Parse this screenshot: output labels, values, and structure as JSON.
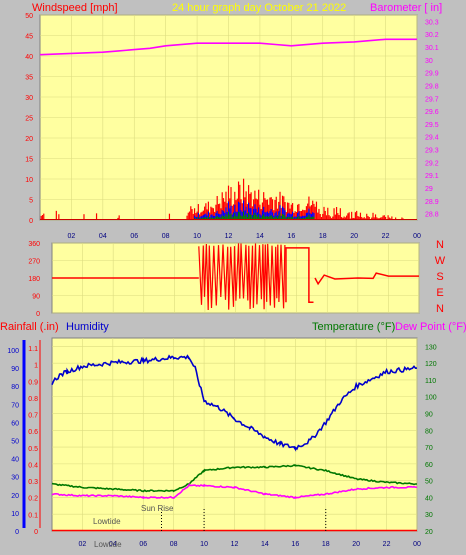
{
  "header": {
    "left_title": "Windspeed [mph]",
    "center_title": "24 hour graph day   October 21 2022",
    "right_title": "Barometer [ in]"
  },
  "colors": {
    "panel_bg": "#ffffa0",
    "frame_bg": "#c0c0c0",
    "grid": "#dcdc80",
    "wind_red": "#ff0000",
    "wind_blue": "#0000ff",
    "wind_green": "#008000",
    "barometer": "#ff00ff",
    "rain": "#ff0000",
    "humidity": "#0000cc",
    "temperature": "#007700",
    "dewpoint": "#ff00ff",
    "title_yellow": "#ffff00"
  },
  "chart_data": [
    {
      "type": "bar",
      "name": "wind_barometer",
      "title": "24 hour graph day   October 21 2022",
      "xticks": [
        "02",
        "04",
        "06",
        "08",
        "10",
        "12",
        "14",
        "16",
        "18",
        "20",
        "22",
        "00"
      ],
      "left_axis": {
        "label": "Windspeed [mph]",
        "ticks": [
          0,
          5,
          10,
          15,
          20,
          25,
          30,
          35,
          40,
          45,
          50
        ],
        "ylim": [
          0,
          50
        ]
      },
      "right_axis": {
        "label": "Barometer [ in]",
        "ticks": [
          "28.8",
          "28.9",
          "29",
          "29.1",
          "29.2",
          "29.3",
          "29.4",
          "29.5",
          "29.6",
          "29.7",
          "29.8",
          "29.9",
          "30",
          "30.1",
          "30.2",
          "30.3"
        ],
        "ylim": [
          28.75,
          30.35
        ]
      },
      "wind_gust_profile": [
        {
          "hour": 0,
          "gust": 2
        },
        {
          "hour": 5,
          "gust": 1
        },
        {
          "hour": 9,
          "gust": 2
        },
        {
          "hour": 10,
          "gust": 3
        },
        {
          "hour": 11,
          "gust": 4
        },
        {
          "hour": 12,
          "gust": 7
        },
        {
          "hour": 13,
          "gust": 8
        },
        {
          "hour": 14,
          "gust": 6
        },
        {
          "hour": 15,
          "gust": 6
        },
        {
          "hour": 16,
          "gust": 4
        },
        {
          "hour": 17,
          "gust": 5
        },
        {
          "hour": 18,
          "gust": 3
        },
        {
          "hour": 20,
          "gust": 2
        },
        {
          "hour": 22,
          "gust": 1
        },
        {
          "hour": 24,
          "gust": 0
        }
      ],
      "barometer_series": [
        {
          "hour": 0,
          "value": 30.04
        },
        {
          "hour": 2,
          "value": 30.05
        },
        {
          "hour": 4,
          "value": 30.06
        },
        {
          "hour": 5,
          "value": 30.07
        },
        {
          "hour": 6,
          "value": 30.08
        },
        {
          "hour": 7,
          "value": 30.09
        },
        {
          "hour": 8,
          "value": 30.11
        },
        {
          "hour": 10,
          "value": 30.13
        },
        {
          "hour": 12,
          "value": 30.13
        },
        {
          "hour": 14,
          "value": 30.13
        },
        {
          "hour": 15,
          "value": 30.12
        },
        {
          "hour": 16,
          "value": 30.11
        },
        {
          "hour": 18,
          "value": 30.13
        },
        {
          "hour": 20,
          "value": 30.14
        },
        {
          "hour": 22,
          "value": 30.16
        },
        {
          "hour": 24,
          "value": 30.16
        }
      ]
    },
    {
      "type": "line",
      "name": "wind_direction",
      "xticks": [
        "02",
        "04",
        "06",
        "08",
        "10",
        "12",
        "14",
        "16",
        "18",
        "20",
        "22",
        "00"
      ],
      "left_ticks": [
        0,
        90,
        180,
        270,
        360
      ],
      "compass": [
        "N",
        "W",
        "S",
        "E",
        "N"
      ],
      "ylim": [
        0,
        360
      ],
      "series": [
        {
          "hour": 0,
          "deg": 180
        },
        {
          "hour": 9.6,
          "deg": 180
        },
        {
          "hour": 10.0,
          "deg": 180
        },
        {
          "hour": 17.2,
          "deg": 180
        },
        {
          "hour": 17.4,
          "deg": 150
        },
        {
          "hour": 17.8,
          "deg": 195
        },
        {
          "hour": 18.5,
          "deg": 175
        },
        {
          "hour": 20,
          "deg": 180
        },
        {
          "hour": 21.0,
          "deg": 178
        },
        {
          "hour": 21.2,
          "deg": 205
        },
        {
          "hour": 22,
          "deg": 190
        },
        {
          "hour": 24,
          "deg": 190
        }
      ],
      "variable_window": {
        "start": 9.6,
        "end": 17.1,
        "min": 10,
        "max": 360
      },
      "box_segment": {
        "start": 15.3,
        "end": 17.1,
        "deg": 335,
        "low": 55
      }
    },
    {
      "type": "line",
      "name": "rain_humidity_temperature",
      "left_labels": {
        "rainfall": "Rainfall (.in)",
        "humidity": "Humidity"
      },
      "right_labels": {
        "temperature": "Temperature (°F)",
        "dewpoint": "Dew Point (°F)"
      },
      "xticks": [
        "02",
        "04",
        "06",
        "08",
        "10",
        "12",
        "14",
        "16",
        "18",
        "20",
        "22",
        "00"
      ],
      "rain_ticks": [
        "0",
        "0.1",
        "0.2",
        "0.3",
        "0.4",
        "0.5",
        "0.6",
        "0.7",
        "0.8",
        "0.9",
        "1",
        "1.1"
      ],
      "humidity_ticks": [
        0,
        10,
        20,
        30,
        40,
        50,
        60,
        70,
        80,
        90,
        100
      ],
      "temp_ticks": [
        20,
        30,
        40,
        50,
        60,
        70,
        80,
        90,
        100,
        110,
        120,
        130
      ],
      "humidity_ylim": [
        0,
        100
      ],
      "temp_ylim": [
        20,
        135
      ],
      "humidity_series": [
        {
          "hour": 0,
          "value": 82
        },
        {
          "hour": 0.5,
          "value": 86
        },
        {
          "hour": 1,
          "value": 88
        },
        {
          "hour": 2,
          "value": 91
        },
        {
          "hour": 4,
          "value": 93
        },
        {
          "hour": 6,
          "value": 94
        },
        {
          "hour": 8,
          "value": 96
        },
        {
          "hour": 9,
          "value": 96
        },
        {
          "hour": 9.4,
          "value": 90
        },
        {
          "hour": 10,
          "value": 72
        },
        {
          "hour": 11,
          "value": 68
        },
        {
          "hour": 12,
          "value": 62
        },
        {
          "hour": 13,
          "value": 57
        },
        {
          "hour": 14,
          "value": 52
        },
        {
          "hour": 15,
          "value": 48
        },
        {
          "hour": 16,
          "value": 46
        },
        {
          "hour": 17,
          "value": 50
        },
        {
          "hour": 18,
          "value": 60
        },
        {
          "hour": 19,
          "value": 72
        },
        {
          "hour": 20,
          "value": 80
        },
        {
          "hour": 21,
          "value": 84
        },
        {
          "hour": 22,
          "value": 88
        },
        {
          "hour": 23,
          "value": 89
        },
        {
          "hour": 24,
          "value": 90
        }
      ],
      "temperature_series": [
        {
          "hour": 0,
          "value": 48
        },
        {
          "hour": 2,
          "value": 46
        },
        {
          "hour": 4,
          "value": 45
        },
        {
          "hour": 6,
          "value": 44
        },
        {
          "hour": 8,
          "value": 44
        },
        {
          "hour": 9,
          "value": 48
        },
        {
          "hour": 10,
          "value": 56
        },
        {
          "hour": 12,
          "value": 58
        },
        {
          "hour": 14,
          "value": 58
        },
        {
          "hour": 16,
          "value": 59
        },
        {
          "hour": 18,
          "value": 56
        },
        {
          "hour": 20,
          "value": 51
        },
        {
          "hour": 22,
          "value": 49
        },
        {
          "hour": 24,
          "value": 48
        }
      ],
      "dewpoint_series": [
        {
          "hour": 0,
          "value": 42
        },
        {
          "hour": 2,
          "value": 41
        },
        {
          "hour": 4,
          "value": 41
        },
        {
          "hour": 6,
          "value": 40
        },
        {
          "hour": 8,
          "value": 40
        },
        {
          "hour": 9,
          "value": 47
        },
        {
          "hour": 10,
          "value": 47
        },
        {
          "hour": 12,
          "value": 46
        },
        {
          "hour": 14,
          "value": 42
        },
        {
          "hour": 16,
          "value": 40
        },
        {
          "hour": 18,
          "value": 42
        },
        {
          "hour": 20,
          "value": 45
        },
        {
          "hour": 22,
          "value": 46
        },
        {
          "hour": 24,
          "value": 46
        }
      ],
      "annotations": [
        {
          "label": "Lowtide",
          "hour": 1.5
        },
        {
          "label": "Sun Rise",
          "hour": 7.2
        },
        {
          "label": "Lowtide",
          "hour": 1.5
        }
      ],
      "event_markers": [
        7.2,
        10.0,
        18.0
      ]
    }
  ],
  "annotations": {
    "lowtide_top": "Lowtide",
    "lowtide_bottom": "Lowtide",
    "sunrise": "Sun Rise"
  }
}
